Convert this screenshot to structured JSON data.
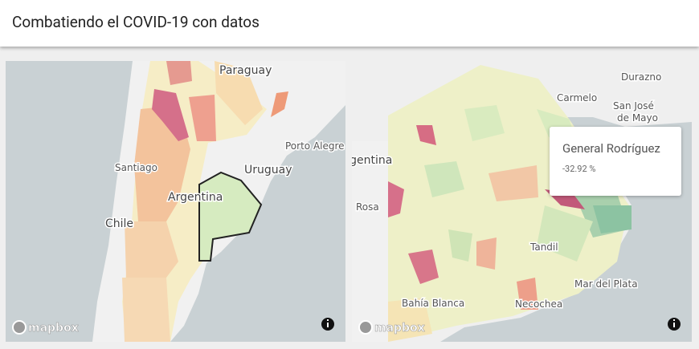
{
  "header": {
    "title": "Combatiendo el COVID-19 con datos"
  },
  "left_map": {
    "labels": [
      "Paraguay",
      "Porto Alegre",
      "Santiago",
      "Uruguay",
      "Argentina",
      "Chile"
    ],
    "attribution": "mapbox"
  },
  "right_map": {
    "labels": [
      "Durazno",
      "Carmelo",
      "San José",
      "de Mayo",
      "Argentina",
      "Rosa",
      "Tandil",
      "Mar del Plata",
      "Bahía Blanca",
      "Necochea"
    ],
    "attribution": "mapbox",
    "tooltip": {
      "title": "General Rodríguez",
      "value": "-32.92 %"
    }
  }
}
